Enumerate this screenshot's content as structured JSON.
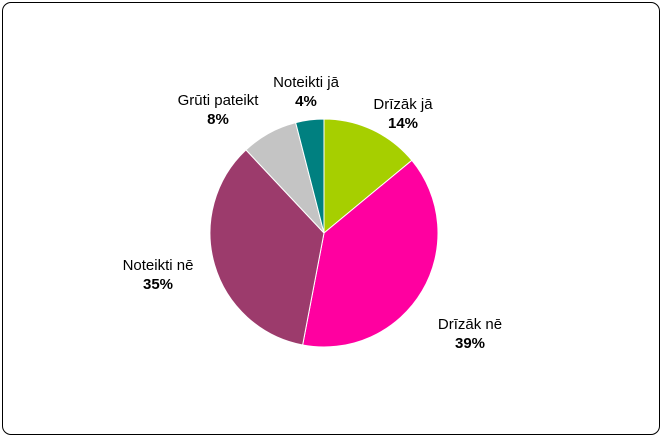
{
  "chart_data": {
    "type": "pie",
    "title": "",
    "start_angle_deg": 0,
    "direction": "clockwise",
    "slices": [
      {
        "label": "Drīzāk jā",
        "value": 14,
        "value_label": "14%",
        "color": "#a6cf00"
      },
      {
        "label": "Drīzāk nē",
        "value": 39,
        "value_label": "39%",
        "color": "#ff00a0"
      },
      {
        "label": "Noteikti nē",
        "value": 35,
        "value_label": "35%",
        "color": "#9c3b6c"
      },
      {
        "label": "Grūti pateikt",
        "value": 8,
        "value_label": "8%",
        "color": "#c4c4c4"
      },
      {
        "label": "Noteikti jā",
        "value": 4,
        "value_label": "4%",
        "color": "#008080"
      }
    ],
    "legend": "none",
    "labels": "outside"
  }
}
